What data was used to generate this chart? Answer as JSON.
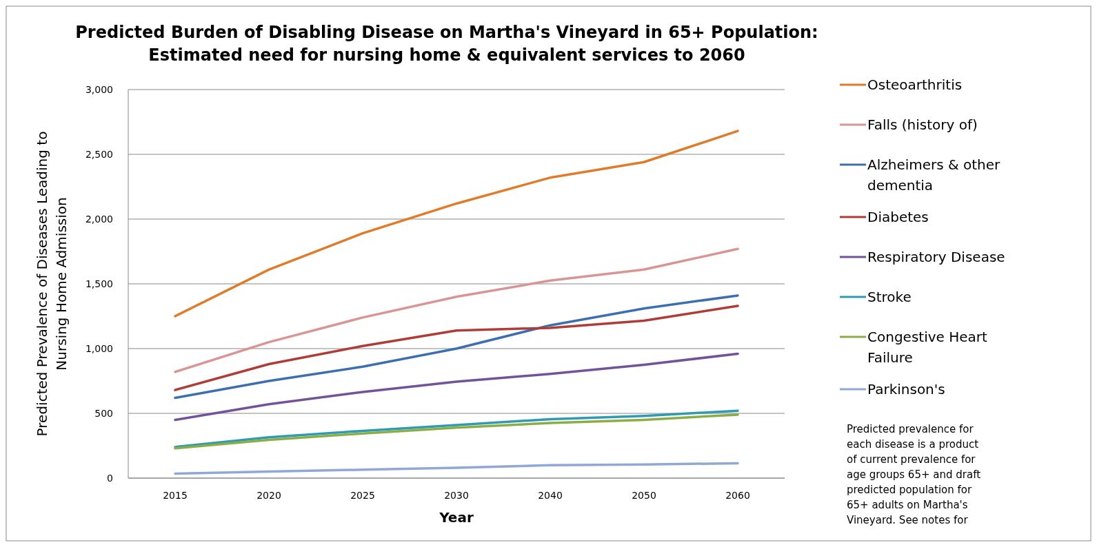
{
  "chart_data": {
    "type": "line",
    "title": "Predicted Burden of Disabling Disease on Martha's Vineyard in 65+ Population: Estimated need for nursing home & equivalent services to 2060",
    "xlabel": "Year",
    "ylabel": "Predicted Prevalence of Diseases Leading to Nursing Home Admission",
    "categories": [
      "2015",
      "2020",
      "2025",
      "2030",
      "2040",
      "2050",
      "2060"
    ],
    "series": [
      {
        "name": "Osteoarthritis",
        "color": "#e07b2a",
        "values": [
          1250,
          1610,
          1890,
          2120,
          2320,
          2440,
          2680
        ]
      },
      {
        "name": "Falls (history of)",
        "color": "#d99594",
        "values": [
          820,
          1050,
          1240,
          1400,
          1525,
          1610,
          1770
        ]
      },
      {
        "name": "Alzheimers & other dementia",
        "color": "#3d6eb0",
        "values": [
          620,
          750,
          860,
          1000,
          1180,
          1310,
          1410
        ]
      },
      {
        "name": "Diabetes",
        "color": "#b03c38",
        "values": [
          680,
          880,
          1020,
          1140,
          1160,
          1215,
          1330
        ]
      },
      {
        "name": "Respiratory Disease",
        "color": "#72539a",
        "values": [
          450,
          570,
          665,
          745,
          805,
          875,
          960
        ]
      },
      {
        "name": "Stroke",
        "color": "#2f9bb3",
        "values": [
          240,
          315,
          365,
          410,
          455,
          480,
          520
        ]
      },
      {
        "name": "Congestive Heart Failure",
        "color": "#8aae45",
        "values": [
          230,
          295,
          345,
          390,
          425,
          450,
          490
        ]
      },
      {
        "name": "Parkinson's",
        "color": "#8fa8d6",
        "values": [
          35,
          50,
          65,
          80,
          100,
          105,
          115
        ]
      }
    ],
    "ylim": [
      0,
      3000
    ],
    "yticks": [
      {
        "value": 0,
        "label": "0"
      },
      {
        "value": 500,
        "label": "500"
      },
      {
        "value": 1000,
        "label": "1,000"
      },
      {
        "value": 1500,
        "label": "1,500"
      },
      {
        "value": 2000,
        "label": "2,000"
      },
      {
        "value": 2500,
        "label": "2,500"
      },
      {
        "value": 3000,
        "label": "3,000"
      }
    ],
    "grid": "y",
    "legend": "right",
    "marker": "none",
    "line_style": "solid",
    "annotations": [
      "Predicted prevalence for each disease is a product of current prevalence for age groups 65+ and draft predicted population for 65+ adults on Martha's Vineyard. See notes for"
    ]
  }
}
